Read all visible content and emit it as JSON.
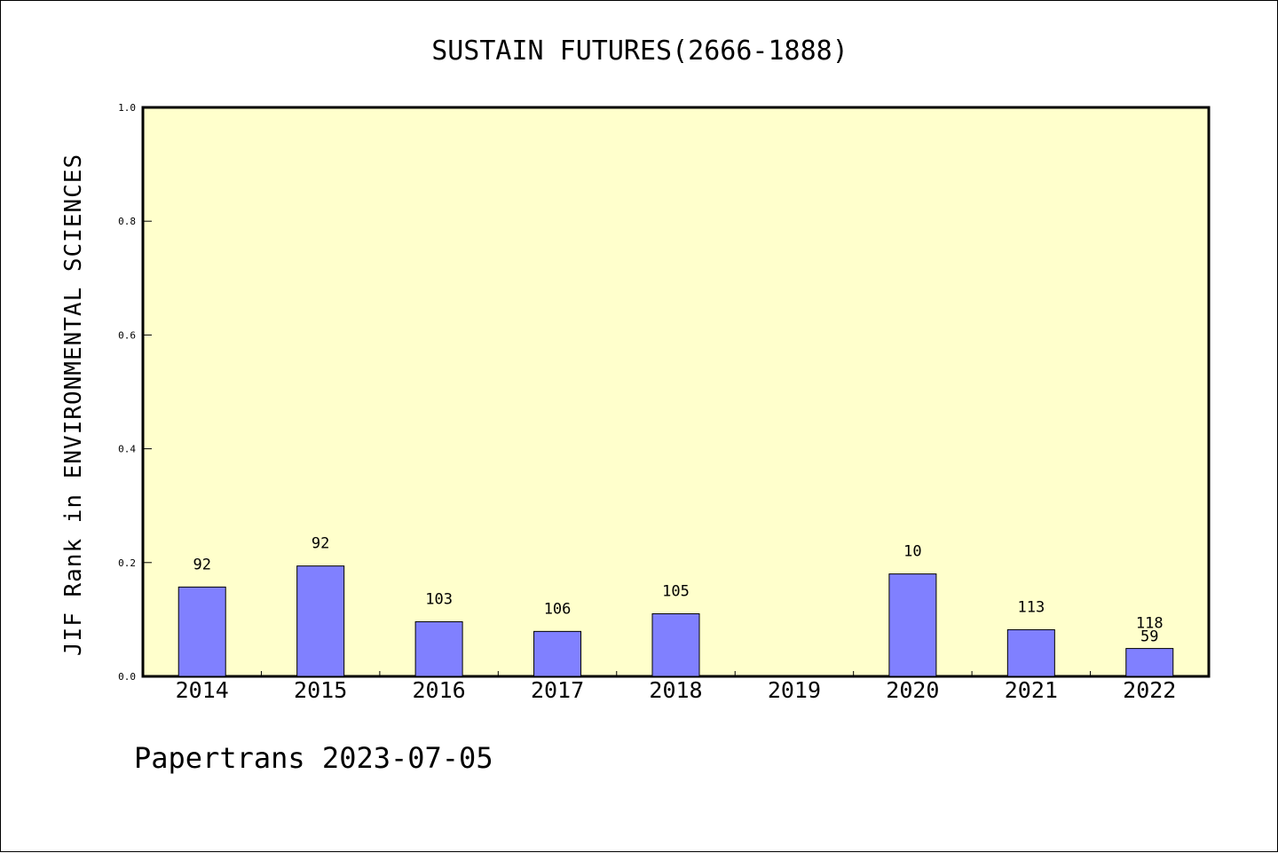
{
  "chart_data": {
    "type": "bar",
    "title": "SUSTAIN FUTURES(2666-1888)",
    "xlabel": "",
    "ylabel": "JIF Rank in ENVIRONMENTAL SCIENCES",
    "ylim": [
      0,
      1.0
    ],
    "yticks": [
      "0.0",
      "0.2",
      "0.4",
      "0.6",
      "0.8",
      "1.0"
    ],
    "categories": [
      "2014",
      "2015",
      "2016",
      "2017",
      "2018",
      "2019",
      "2020",
      "2021",
      "2022"
    ],
    "values": [
      0.157,
      0.194,
      0.096,
      0.079,
      0.11,
      null,
      0.18,
      0.082,
      0.049
    ],
    "labels": [
      [
        "92"
      ],
      [
        "92"
      ],
      [
        "103"
      ],
      [
        "106"
      ],
      [
        "105"
      ],
      [],
      [
        "10"
      ],
      [
        "113"
      ],
      [
        "118",
        "59"
      ]
    ],
    "grid": false,
    "legend": "none",
    "colors": {
      "plot_background": "#ffffcc",
      "bar_fill": "#8080ff",
      "bar_stroke": "#000000"
    }
  },
  "footer": {
    "text": "Papertrans 2023-07-05"
  }
}
